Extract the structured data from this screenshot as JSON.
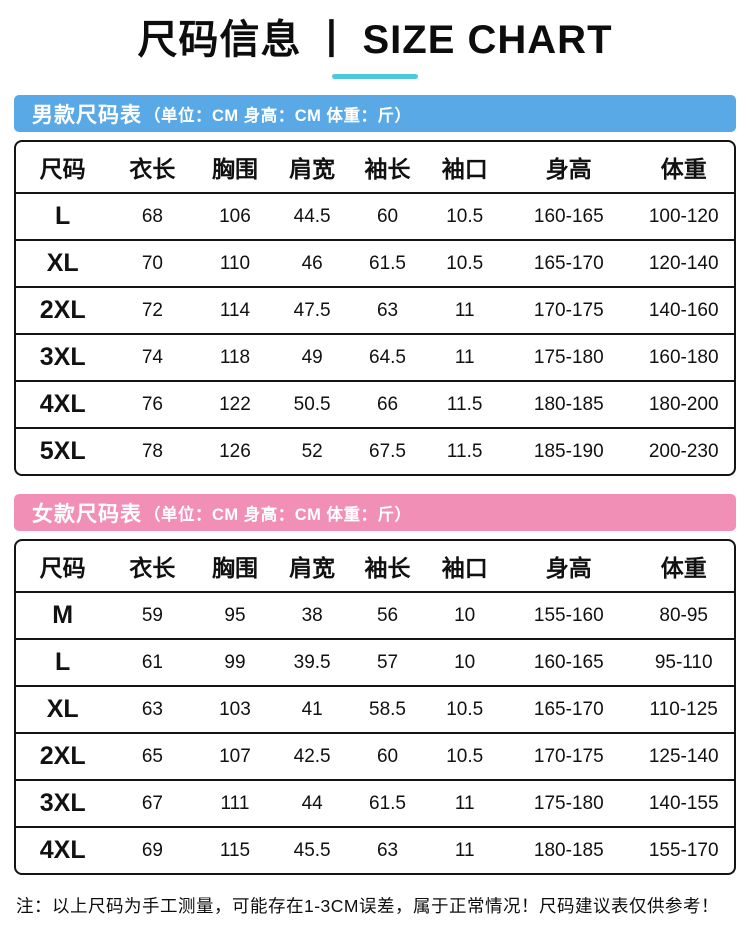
{
  "title": {
    "cn": "尺码信息",
    "divider": "丨",
    "en": "SIZE CHART"
  },
  "accent": {
    "underline_color": "#4ec8dc"
  },
  "men": {
    "label": "男款尺码表",
    "units_note": "（单位：CM  身高：CM  体重：斤）",
    "bar_color": "#59a9e6",
    "headers": [
      "尺码",
      "衣长",
      "胸围",
      "肩宽",
      "袖长",
      "袖口",
      "身高",
      "体重"
    ],
    "rows": [
      [
        "L",
        "68",
        "106",
        "44.5",
        "60",
        "10.5",
        "160-165",
        "100-120"
      ],
      [
        "XL",
        "70",
        "110",
        "46",
        "61.5",
        "10.5",
        "165-170",
        "120-140"
      ],
      [
        "2XL",
        "72",
        "114",
        "47.5",
        "63",
        "11",
        "170-175",
        "140-160"
      ],
      [
        "3XL",
        "74",
        "118",
        "49",
        "64.5",
        "11",
        "175-180",
        "160-180"
      ],
      [
        "4XL",
        "76",
        "122",
        "50.5",
        "66",
        "11.5",
        "180-185",
        "180-200"
      ],
      [
        "5XL",
        "78",
        "126",
        "52",
        "67.5",
        "11.5",
        "185-190",
        "200-230"
      ]
    ]
  },
  "women": {
    "label": "女款尺码表",
    "units_note": "（单位：CM  身高：CM  体重：斤）",
    "bar_color": "#f18fb7",
    "headers": [
      "尺码",
      "衣长",
      "胸围",
      "肩宽",
      "袖长",
      "袖口",
      "身高",
      "体重"
    ],
    "rows": [
      [
        "M",
        "59",
        "95",
        "38",
        "56",
        "10",
        "155-160",
        "80-95"
      ],
      [
        "L",
        "61",
        "99",
        "39.5",
        "57",
        "10",
        "160-165",
        "95-110"
      ],
      [
        "XL",
        "63",
        "103",
        "41",
        "58.5",
        "10.5",
        "165-170",
        "110-125"
      ],
      [
        "2XL",
        "65",
        "107",
        "42.5",
        "60",
        "10.5",
        "170-175",
        "125-140"
      ],
      [
        "3XL",
        "67",
        "111",
        "44",
        "61.5",
        "11",
        "175-180",
        "140-155"
      ],
      [
        "4XL",
        "69",
        "115",
        "45.5",
        "63",
        "11",
        "180-185",
        "155-170"
      ]
    ]
  },
  "footer": {
    "note": "注：以上尺码为手工测量，可能存在1-3CM误差，属于正常情况！尺码建议表仅供参考！"
  }
}
